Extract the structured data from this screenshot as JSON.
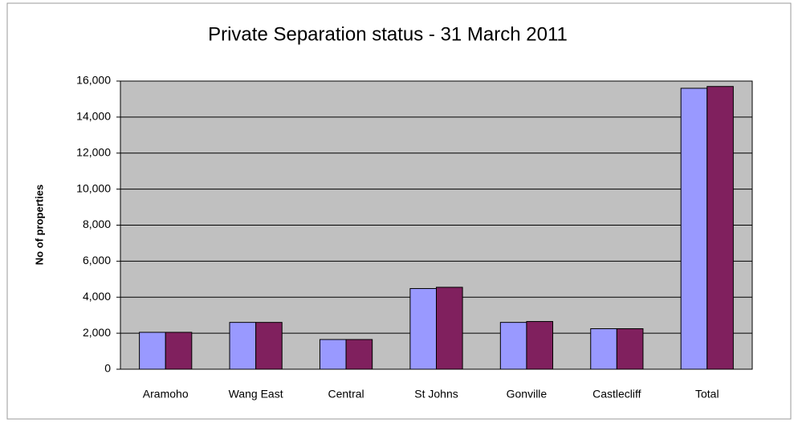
{
  "chart_data": {
    "type": "bar",
    "title": "Private Separation status - 31 March 2011",
    "y_label": "No of properties",
    "categories": [
      "Aramoho",
      "Wang East",
      "Central",
      "St Johns",
      "Gonville",
      "Castlecliff",
      "Total"
    ],
    "series": [
      {
        "color": "#9999ff",
        "values": [
          2050,
          2600,
          1650,
          4480,
          2600,
          2250,
          15600
        ]
      },
      {
        "color": "#80205e",
        "values": [
          2050,
          2600,
          1650,
          4550,
          2650,
          2250,
          15700
        ]
      }
    ],
    "ylim": [
      0,
      16000
    ],
    "yticks": [
      0,
      {
        "value": 2000,
        "label": "2,000"
      },
      {
        "value": 4000,
        "label": "4,000"
      },
      {
        "value": 6000,
        "label": "6,000"
      },
      {
        "value": 8000,
        "label": "8,000"
      },
      {
        "value": 10000,
        "label": "10,000"
      },
      {
        "value": 12000,
        "label": "12,000"
      },
      {
        "value": 14000,
        "label": "14,000"
      },
      {
        "value": 16000,
        "label": "16,000"
      }
    ],
    "grid": true,
    "plot_background": "#c0c0c0"
  }
}
